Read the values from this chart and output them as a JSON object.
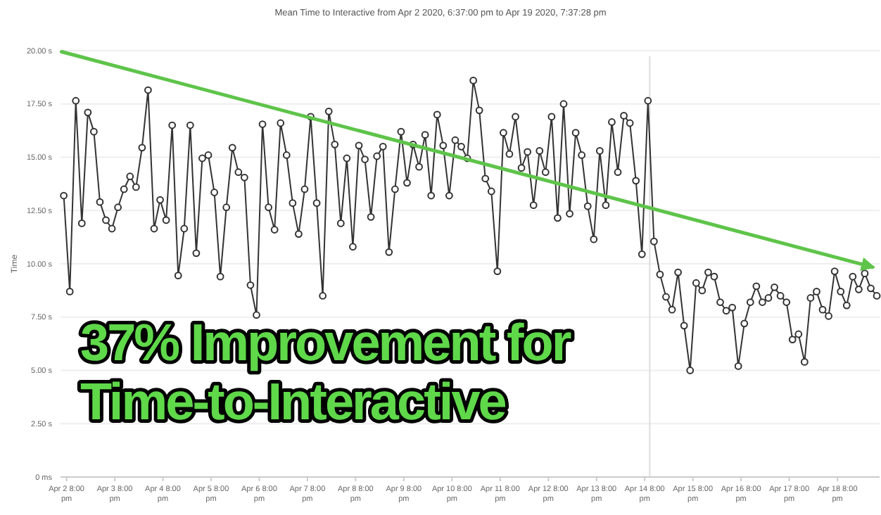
{
  "chart_data": {
    "type": "line",
    "title": "Mean Time to Interactive from Apr 2 2020, 6:37:00 pm to Apr 19 2020, 7:37:28 pm",
    "ylabel": "Time",
    "xlim": [
      "2020-04-02T17:00",
      "2020-04-19T17:00"
    ],
    "xticks": [
      {
        "value": "2020-04-02T20:00",
        "label": "Apr 2 8:00 pm"
      },
      {
        "value": "2020-04-03T20:00",
        "label": "Apr 3 8:00 pm"
      },
      {
        "value": "2020-04-04T20:00",
        "label": "Apr 4 8:00 pm"
      },
      {
        "value": "2020-04-05T20:00",
        "label": "Apr 5 8:00 pm"
      },
      {
        "value": "2020-04-06T20:00",
        "label": "Apr 6 8:00 pm"
      },
      {
        "value": "2020-04-07T20:00",
        "label": "Apr 7 8:00 pm"
      },
      {
        "value": "2020-04-08T20:00",
        "label": "Apr 8 8:00 pm"
      },
      {
        "value": "2020-04-09T20:00",
        "label": "Apr 9 8:00 pm"
      },
      {
        "value": "2020-04-10T20:00",
        "label": "Apr 10 8:00 pm"
      },
      {
        "value": "2020-04-11T20:00",
        "label": "Apr 11 8:00 pm"
      },
      {
        "value": "2020-04-12T20:00",
        "label": "Apr 12 8:00 pm"
      },
      {
        "value": "2020-04-13T20:00",
        "label": "Apr 13 8:00 pm"
      },
      {
        "value": "2020-04-14T20:00",
        "label": "Apr 14 8:00 pm"
      },
      {
        "value": "2020-04-15T20:00",
        "label": "Apr 15 8:00 pm"
      },
      {
        "value": "2020-04-16T20:00",
        "label": "Apr 16 8:00 pm"
      },
      {
        "value": "2020-04-17T20:00",
        "label": "Apr 17 8:00 pm"
      },
      {
        "value": "2020-04-18T20:00",
        "label": "Apr 18 8:00 pm"
      }
    ],
    "ylim": [
      0,
      20
    ],
    "yticks": [
      {
        "value": 0,
        "label": "0 ms"
      },
      {
        "value": 2.5,
        "label": "2.50 s"
      },
      {
        "value": 5,
        "label": "5.00 s"
      },
      {
        "value": 7.5,
        "label": "7.50 s"
      },
      {
        "value": 10,
        "label": "10.00 s"
      },
      {
        "value": 12.5,
        "label": "12.50 s"
      },
      {
        "value": 15,
        "label": "15.00 s"
      },
      {
        "value": 17.5,
        "label": "17.50 s"
      },
      {
        "value": 20,
        "label": "20.00 s"
      }
    ],
    "grid": "y",
    "ref_lines": [
      {
        "axis": "x",
        "value": "2020-04-14T22:30",
        "color": "#dddddd"
      }
    ],
    "annotations": [
      "37% Improvement for Time-to-Interactive"
    ],
    "series": [
      {
        "color": "#333333",
        "marker": "circle",
        "x": [
          "2020-04-02T18:37",
          "2020-04-02T21:37",
          "2020-04-03T00:37",
          "2020-04-03T03:37",
          "2020-04-03T06:37",
          "2020-04-03T09:37",
          "2020-04-03T12:37",
          "2020-04-03T15:37",
          "2020-04-03T18:37",
          "2020-04-03T21:37",
          "2020-04-04T00:37",
          "2020-04-04T03:37",
          "2020-04-04T06:37",
          "2020-04-04T09:37",
          "2020-04-04T12:37",
          "2020-04-04T15:37",
          "2020-04-04T18:37",
          "2020-04-04T21:37",
          "2020-04-05T00:37",
          "2020-04-05T03:37",
          "2020-04-05T06:37",
          "2020-04-05T09:37",
          "2020-04-05T12:37",
          "2020-04-05T15:37",
          "2020-04-05T18:37",
          "2020-04-05T21:37",
          "2020-04-06T00:37",
          "2020-04-06T03:37",
          "2020-04-06T06:37",
          "2020-04-06T09:37",
          "2020-04-06T12:37",
          "2020-04-06T15:37",
          "2020-04-06T18:37",
          "2020-04-06T21:37",
          "2020-04-07T00:37",
          "2020-04-07T03:37",
          "2020-04-07T06:37",
          "2020-04-07T09:37",
          "2020-04-07T12:37",
          "2020-04-07T15:37",
          "2020-04-07T18:37",
          "2020-04-07T21:37",
          "2020-04-08T00:37",
          "2020-04-08T03:37",
          "2020-04-08T06:37",
          "2020-04-08T09:37",
          "2020-04-08T12:37",
          "2020-04-08T15:37",
          "2020-04-08T18:37",
          "2020-04-08T21:37",
          "2020-04-09T00:37",
          "2020-04-09T03:37",
          "2020-04-09T06:37",
          "2020-04-09T09:37",
          "2020-04-09T12:37",
          "2020-04-09T15:37",
          "2020-04-09T18:37",
          "2020-04-09T21:37",
          "2020-04-10T00:37",
          "2020-04-10T03:37",
          "2020-04-10T06:37",
          "2020-04-10T09:37",
          "2020-04-10T12:37",
          "2020-04-10T15:37",
          "2020-04-10T18:37",
          "2020-04-10T21:37",
          "2020-04-11T00:37",
          "2020-04-11T03:37",
          "2020-04-11T06:37",
          "2020-04-11T09:37",
          "2020-04-11T12:37",
          "2020-04-11T15:37",
          "2020-04-11T18:37",
          "2020-04-11T21:37",
          "2020-04-12T00:37",
          "2020-04-12T03:37",
          "2020-04-12T06:37",
          "2020-04-12T09:37",
          "2020-04-12T12:37",
          "2020-04-12T15:37",
          "2020-04-12T18:37",
          "2020-04-12T21:37",
          "2020-04-13T00:37",
          "2020-04-13T03:37",
          "2020-04-13T06:37",
          "2020-04-13T09:37",
          "2020-04-13T12:37",
          "2020-04-13T15:37",
          "2020-04-13T18:37",
          "2020-04-13T21:37",
          "2020-04-14T00:37",
          "2020-04-14T03:37",
          "2020-04-14T06:37",
          "2020-04-14T09:37",
          "2020-04-14T12:37",
          "2020-04-14T15:37",
          "2020-04-14T18:37",
          "2020-04-14T21:37",
          "2020-04-15T00:37",
          "2020-04-15T03:37",
          "2020-04-15T06:37",
          "2020-04-15T09:37",
          "2020-04-15T12:37",
          "2020-04-15T15:37",
          "2020-04-15T18:37",
          "2020-04-15T21:37",
          "2020-04-16T00:37",
          "2020-04-16T03:37",
          "2020-04-16T06:37",
          "2020-04-16T09:37",
          "2020-04-16T12:37",
          "2020-04-16T15:37",
          "2020-04-16T18:37",
          "2020-04-16T21:37",
          "2020-04-17T00:37",
          "2020-04-17T03:37",
          "2020-04-17T06:37",
          "2020-04-17T09:37",
          "2020-04-17T12:37",
          "2020-04-17T15:37",
          "2020-04-17T18:37",
          "2020-04-17T21:37",
          "2020-04-18T00:37",
          "2020-04-18T03:37",
          "2020-04-18T06:37",
          "2020-04-18T09:37",
          "2020-04-18T12:37",
          "2020-04-18T15:37",
          "2020-04-18T18:37",
          "2020-04-18T21:37",
          "2020-04-19T00:37",
          "2020-04-19T03:37",
          "2020-04-19T06:37",
          "2020-04-19T09:37",
          "2020-04-19T12:37",
          "2020-04-19T15:37"
        ],
        "values": [
          13.2,
          8.7,
          17.65,
          11.9,
          17.1,
          16.2,
          12.9,
          12.05,
          11.65,
          12.65,
          13.5,
          14.1,
          13.6,
          15.45,
          18.15,
          11.65,
          13.0,
          12.05,
          16.5,
          9.45,
          11.65,
          16.5,
          10.5,
          14.95,
          15.1,
          13.35,
          9.4,
          12.65,
          15.45,
          14.3,
          14.05,
          9.0,
          7.6,
          16.55,
          12.65,
          11.6,
          16.6,
          15.1,
          12.85,
          11.4,
          13.5,
          16.9,
          12.85,
          8.5,
          17.15,
          15.6,
          11.9,
          14.95,
          10.8,
          15.55,
          14.9,
          12.2,
          15.05,
          15.5,
          10.55,
          13.5,
          16.2,
          13.8,
          15.6,
          14.55,
          16.05,
          13.2,
          17.0,
          15.55,
          13.2,
          15.8,
          15.5,
          14.95,
          18.6,
          17.2,
          14.0,
          13.4,
          9.65,
          16.15,
          15.15,
          16.9,
          14.5,
          15.25,
          12.75,
          15.3,
          14.3,
          16.9,
          12.15,
          17.5,
          12.35,
          16.15,
          15.1,
          12.7,
          11.15,
          15.3,
          12.75,
          16.65,
          14.3,
          16.95,
          16.6,
          13.9,
          10.45,
          17.65,
          11.05,
          9.5,
          8.45,
          7.85,
          9.6,
          7.1,
          5.0,
          9.1,
          8.75,
          9.6,
          9.4,
          8.2,
          7.8,
          7.95,
          5.2,
          7.2,
          8.2,
          8.95,
          8.2,
          8.4,
          8.9,
          8.5,
          8.2,
          6.45,
          6.7,
          5.4,
          8.4,
          8.7,
          7.85,
          7.55,
          9.65,
          8.7,
          8.05,
          9.4,
          8.8,
          9.55,
          8.85,
          8.5
        ]
      },
      {
        "color": "#5ec44a",
        "marker": "none",
        "x": [
          "2020-04-02T17:30",
          "2020-04-19T13:30"
        ],
        "values": [
          19.95,
          9.85
        ]
      }
    ]
  }
}
